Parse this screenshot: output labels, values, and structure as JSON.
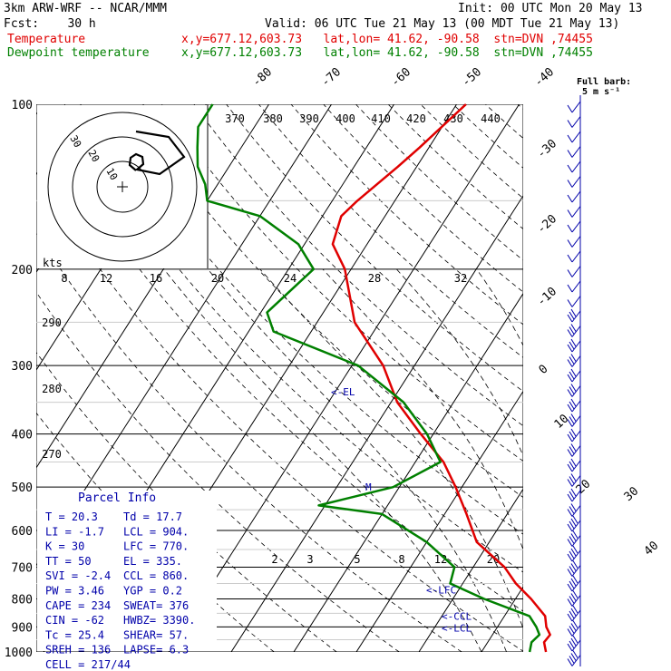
{
  "header": {
    "model": "3km ARW-WRF -- NCAR/MMM",
    "init": "Init: 00 UTC Mon 20 May 13",
    "fcst": "Fcst:    30 h",
    "valid": "Valid: 06 UTC Tue 21 May 13 (00 MDT Tue 21 May 13)",
    "temp_label": "Temperature",
    "dew_label": "Dewpoint temperature",
    "temp_loc": "x,y=677.12,603.73   lat,lon= 41.62, -90.58  stn=DVN ,74455",
    "dew_loc": "x,y=677.12,603.73   lat,lon= 41.62, -90.58  stn=DVN ,74455"
  },
  "barb_legend": {
    "title": "Full barb:",
    "value": "5 m s⁻¹"
  },
  "colors": {
    "temperature": "#e00000",
    "dewpoint": "#008000",
    "annotation": "#0000aa",
    "grid": "#000000"
  },
  "chart_data": {
    "type": "line",
    "title": "",
    "ylabel": "",
    "y_scale": "log-pressure",
    "pressure_ticks": [
      100,
      200,
      300,
      400,
      500,
      600,
      700,
      800,
      900,
      1000
    ],
    "isotherm_labels": [
      "-80",
      "-70",
      "-60",
      "-50",
      "-40",
      "-30",
      "-20",
      "-10",
      "0",
      "10",
      "20",
      "30",
      "40"
    ],
    "theta_labels_top": [
      "370",
      "380",
      "390",
      "400",
      "410",
      "420",
      "430",
      "440"
    ],
    "theta_labels_left": [
      "290",
      "280",
      "270"
    ],
    "mixing_ratio_labels_upper": [
      "8",
      "12",
      "16",
      "20",
      "24",
      "28",
      "32"
    ],
    "mixing_ratio_labels_lower": [
      "2",
      "3",
      "5",
      "8",
      "12",
      "20"
    ],
    "series": [
      {
        "name": "Temperature",
        "points": [
          [
            20.3,
            1000
          ],
          [
            19.0,
            960
          ],
          [
            19.2,
            930
          ],
          [
            17.8,
            900
          ],
          [
            16.5,
            860
          ],
          [
            12.5,
            800
          ],
          [
            8.5,
            750
          ],
          [
            5.0,
            700
          ],
          [
            -2.0,
            630
          ],
          [
            -6.5,
            560
          ],
          [
            -11.0,
            500
          ],
          [
            -15.5,
            450
          ],
          [
            -22.0,
            400
          ],
          [
            -29.0,
            350
          ],
          [
            -35.0,
            300
          ],
          [
            -44.0,
            250
          ],
          [
            -51.0,
            200
          ],
          [
            -55.5,
            180
          ],
          [
            -57.0,
            160
          ],
          [
            -56.0,
            150
          ],
          [
            -53.0,
            130
          ],
          [
            -51.5,
            120
          ],
          [
            -48.5,
            100
          ]
        ]
      },
      {
        "name": "Dewpoint temperature",
        "points": [
          [
            17.7,
            1000
          ],
          [
            17.0,
            960
          ],
          [
            17.5,
            930
          ],
          [
            16.2,
            900
          ],
          [
            14.0,
            860
          ],
          [
            5.0,
            800
          ],
          [
            -2.0,
            750
          ],
          [
            -3.0,
            700
          ],
          [
            -10.0,
            630
          ],
          [
            -20.0,
            560
          ],
          [
            -31.0,
            540
          ],
          [
            -21.0,
            500
          ],
          [
            -16.0,
            450
          ],
          [
            -21.0,
            400
          ],
          [
            -28.0,
            350
          ],
          [
            -39.0,
            300
          ],
          [
            -56.0,
            260
          ],
          [
            -59.0,
            240
          ],
          [
            -56.0,
            200
          ],
          [
            -61.0,
            180
          ],
          [
            -70.0,
            160
          ],
          [
            -80.0,
            150
          ],
          [
            -82.0,
            140
          ],
          [
            -85.0,
            130
          ],
          [
            -87.0,
            120
          ],
          [
            -89.0,
            110
          ],
          [
            -89.0,
            100
          ]
        ]
      }
    ],
    "annotations": [
      {
        "label": "<-EL",
        "pressure": 335
      },
      {
        "label": "<-LFC",
        "pressure": 770
      },
      {
        "label": "<-CCL",
        "pressure": 860
      },
      {
        "label": "<-LCL",
        "pressure": 904
      }
    ],
    "wind_barb_count": 38
  },
  "hodograph": {
    "speed_unit": "kts",
    "ring_labels": [
      "10",
      "20",
      "30"
    ],
    "cell_speed": 44
  },
  "parcel_info": {
    "title": "Parcel Info",
    "rows": [
      [
        "T  =    20.3",
        "Td =   17.7"
      ],
      [
        "LI =    -1.7",
        "LCL =  904."
      ],
      [
        "K  =      30",
        "LFC =  770."
      ],
      [
        "TT =      50",
        "EL  =  335."
      ],
      [
        "SVI =   -2.4",
        "CCL =  860."
      ],
      [
        "PW =    3.46",
        "YGP =   0.2"
      ],
      [
        "CAPE =   234",
        "SWEAT=  376"
      ],
      [
        "CIN =    -62",
        "HWBZ= 3390."
      ],
      [
        "Tc =    25.4",
        "SHEAR=  57."
      ],
      [
        "SREH =   136",
        "LAPSE=  6.3"
      ]
    ],
    "cell": "CELL = 217/44"
  }
}
